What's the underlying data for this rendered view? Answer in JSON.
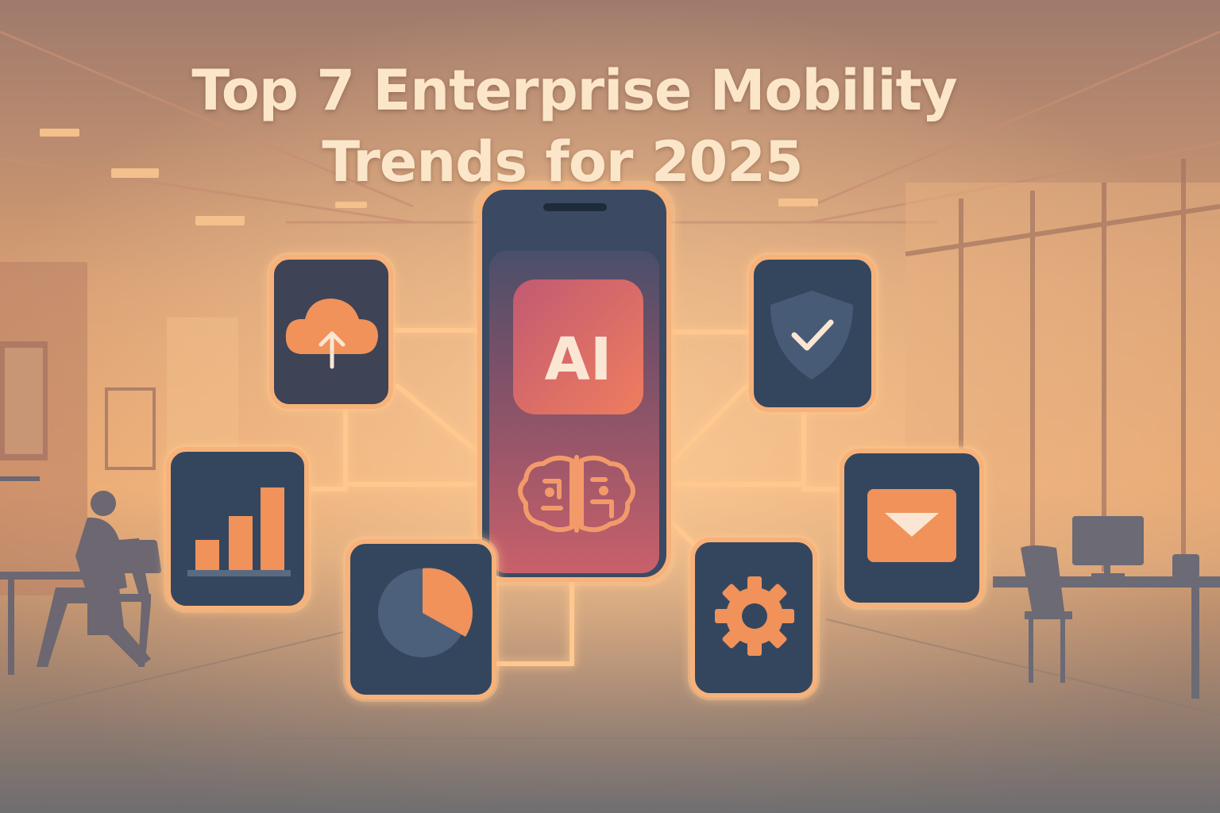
{
  "title": {
    "line1": "Top 7 Enterprise Mobility",
    "line2": "Trends for 2025"
  },
  "phone": {
    "badge_text": "AI"
  },
  "icons": [
    {
      "name": "cloud-upload-icon"
    },
    {
      "name": "shield-check-icon"
    },
    {
      "name": "bar-chart-icon"
    },
    {
      "name": "email-icon"
    },
    {
      "name": "pie-chart-icon"
    },
    {
      "name": "gear-icon"
    },
    {
      "name": "brain-icon"
    }
  ],
  "colors": {
    "accent": "#f0925a",
    "tile": "#34465e",
    "glow": "#ffc48a",
    "title": "#fbe6c9"
  }
}
